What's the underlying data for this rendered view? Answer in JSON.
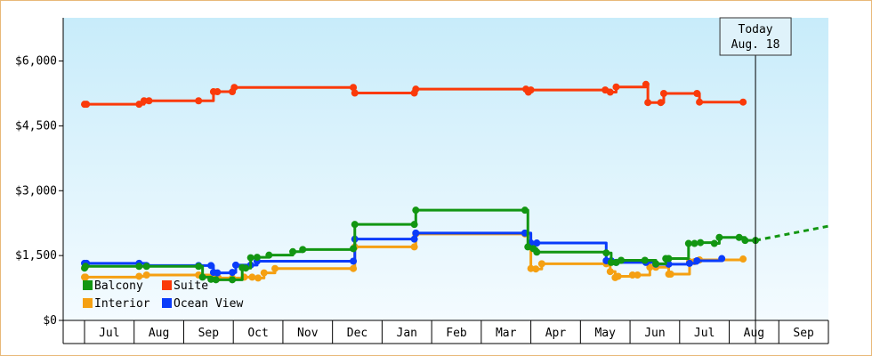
{
  "chart_data": {
    "type": "line",
    "title": "",
    "xlabel": "",
    "ylabel": "",
    "ylim": [
      0,
      7000
    ],
    "y_ticks": [
      "$0",
      "$1,500",
      "$3,000",
      "$4,500",
      "$6,000"
    ],
    "y_tick_values": [
      0,
      1500,
      3000,
      4500,
      6000
    ],
    "x_range": [
      0,
      15
    ],
    "x_ticks": [
      "Jul",
      "Aug",
      "Sep",
      "Oct",
      "Nov",
      "Dec",
      "Jan",
      "Feb",
      "Mar",
      "Apr",
      "May",
      "Jun",
      "Jul",
      "Aug",
      "Sep"
    ],
    "x_tick_values": [
      0.5,
      1.5,
      2.5,
      3.5,
      4.5,
      5.5,
      6.5,
      7.5,
      8.5,
      9.5,
      10.5,
      11.5,
      12.5,
      13.5,
      14.5
    ],
    "grid": false,
    "step": true,
    "legend_position": "bottom-left",
    "annotation": {
      "line1": "Today",
      "line2": "Aug. 18",
      "x": 13.53
    },
    "projection": {
      "series": "Balcony",
      "x": [
        13.53,
        15
      ],
      "y": [
        1850,
        2180
      ]
    },
    "series": [
      {
        "name": "Balcony",
        "color": "#129612",
        "x": [
          0,
          0.02,
          1.1,
          1.25,
          2.3,
          2.38,
          2.55,
          2.65,
          2.98,
          3.18,
          3.25,
          3.35,
          3.48,
          3.72,
          4.2,
          4.4,
          5.42,
          5.45,
          6.65,
          6.68,
          8.88,
          8.94,
          9.05,
          9.12,
          10.52,
          10.62,
          10.72,
          10.82,
          11.3,
          11.52,
          11.72,
          11.78,
          12.18,
          12.3,
          12.42,
          12.7,
          12.8,
          13.2,
          13.32,
          13.53
        ],
        "y": [
          1210,
          1250,
          1250,
          1250,
          1250,
          1000,
          950,
          940,
          940,
          1220,
          1210,
          1450,
          1460,
          1510,
          1590,
          1640,
          1660,
          2220,
          2220,
          2550,
          2550,
          1700,
          1660,
          1580,
          1560,
          1340,
          1340,
          1390,
          1390,
          1310,
          1430,
          1430,
          1780,
          1780,
          1800,
          1780,
          1920,
          1920,
          1850,
          1850
        ]
      },
      {
        "name": "Suite",
        "color": "#fa3a0a",
        "x": [
          0,
          0.04,
          1.1,
          1.2,
          1.3,
          2.3,
          2.6,
          2.68,
          2.98,
          3.02,
          5.42,
          5.45,
          6.65,
          6.68,
          8.9,
          8.95,
          9.0,
          10.5,
          10.6,
          10.72,
          11.32,
          11.36,
          11.62,
          11.68,
          12.35,
          12.4,
          13.28
        ],
        "y": [
          5000,
          5000,
          5000,
          5080,
          5080,
          5080,
          5290,
          5290,
          5290,
          5390,
          5390,
          5260,
          5260,
          5350,
          5350,
          5280,
          5330,
          5330,
          5280,
          5400,
          5460,
          5040,
          5040,
          5250,
          5250,
          5050,
          5050
        ]
      },
      {
        "name": "Interior",
        "color": "#f5a012",
        "x": [
          0,
          0.02,
          1.1,
          1.25,
          2.3,
          2.6,
          2.7,
          2.98,
          3.22,
          3.38,
          3.5,
          3.62,
          3.84,
          5.42,
          5.45,
          6.65,
          6.68,
          8.88,
          9.0,
          9.1,
          9.22,
          10.52,
          10.6,
          10.7,
          10.76,
          11.05,
          11.15,
          11.4,
          11.52,
          11.78,
          11.82,
          12.2,
          12.3,
          12.4,
          13.28
        ],
        "y": [
          1000,
          1000,
          1020,
          1050,
          1050,
          1050,
          980,
          980,
          1000,
          1000,
          980,
          1100,
          1200,
          1200,
          1700,
          1700,
          2000,
          2000,
          1200,
          1190,
          1310,
          1310,
          1130,
          990,
          1020,
          1050,
          1050,
          1230,
          1230,
          1070,
          1070,
          1360,
          1360,
          1400,
          1420
        ]
      },
      {
        "name": "Ocean View",
        "color": "#0a3cfa",
        "x": [
          0,
          0.04,
          1.1,
          1.25,
          2.3,
          2.55,
          2.6,
          2.68,
          2.98,
          3.05,
          3.35,
          3.48,
          5.42,
          5.45,
          6.65,
          6.68,
          8.88,
          9.0,
          9.12,
          10.52,
          10.62,
          10.72,
          11.32,
          11.52,
          11.78,
          12.2,
          12.35,
          12.85
        ],
        "y": [
          1320,
          1320,
          1320,
          1270,
          1270,
          1270,
          1110,
          1100,
          1110,
          1280,
          1280,
          1370,
          1370,
          1880,
          1880,
          2020,
          2020,
          1790,
          1790,
          1380,
          1380,
          1340,
          1340,
          1300,
          1300,
          1320,
          1380,
          1430
        ]
      }
    ]
  }
}
